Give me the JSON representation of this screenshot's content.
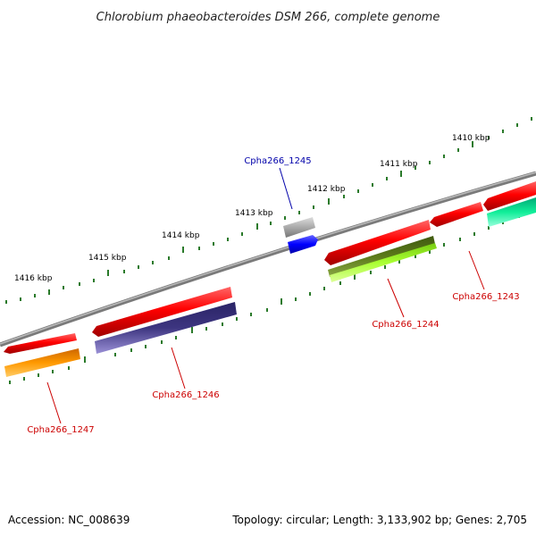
{
  "title": "Chlorobium phaeobacteroides DSM 266, complete genome",
  "footer": {
    "accession": "Accession: NC_008639",
    "summary": "Topology: circular; Length: 3,133,902 bp; Genes: 2,705"
  },
  "scale_labels": [
    "1416 kbp",
    "1415 kbp",
    "1414 kbp",
    "1413 kbp",
    "1412 kbp",
    "1411 kbp",
    "1410 kbp"
  ],
  "genes": [
    {
      "label": "Cpha266_1247",
      "color": "#cc0000"
    },
    {
      "label": "Cpha266_1246",
      "color": "#cc0000"
    },
    {
      "label": "Cpha266_1245",
      "color": "#0000aa"
    },
    {
      "label": "Cpha266_1244",
      "color": "#cc0000"
    },
    {
      "label": "Cpha266_1243",
      "color": "#cc0000"
    }
  ],
  "colors": {
    "backbone": "#7a7a7a",
    "ticks": "#2a7a2a",
    "red": "#ff0000",
    "orange": "#ff9900",
    "navy": "#3d3580",
    "gray": "#aaaaaa",
    "blue": "#0000ff",
    "olive": "#5c7a1a",
    "lime": "#aaff33",
    "teal": "#11ee99"
  }
}
